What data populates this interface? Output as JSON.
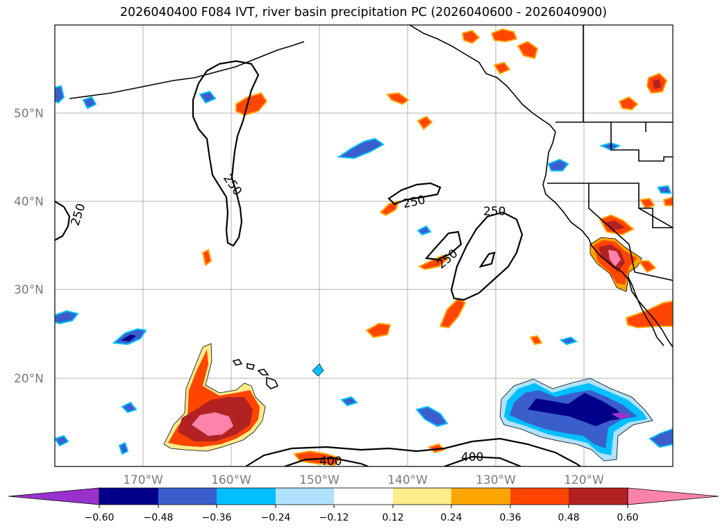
{
  "title": "2026040400 F084 IVT, river basin precipitation PC (2026040600 - 2026040900)",
  "map": {
    "lat_labels": [
      "50°N",
      "40°N",
      "30°N",
      "20°N"
    ],
    "lon_labels": [
      "170°W",
      "160°W",
      "150°W",
      "140°W",
      "130°W",
      "120°W"
    ],
    "contour_labels": [
      "250",
      "250",
      "250",
      "250",
      "250",
      "400",
      "400"
    ]
  },
  "colorbar": {
    "colors": [
      "#9932CC",
      "#00008B",
      "#3A5FCD",
      "#00BFFF",
      "#B0E2FF",
      "#FFFFFF",
      "#FFEC8B",
      "#FFA500",
      "#FF4500",
      "#B22222",
      "#FF82AB"
    ],
    "ticks": [
      "−0.60",
      "−0.48",
      "−0.36",
      "−0.24",
      "−0.12",
      "0.12",
      "0.24",
      "0.36",
      "0.48",
      "0.60"
    ]
  }
}
